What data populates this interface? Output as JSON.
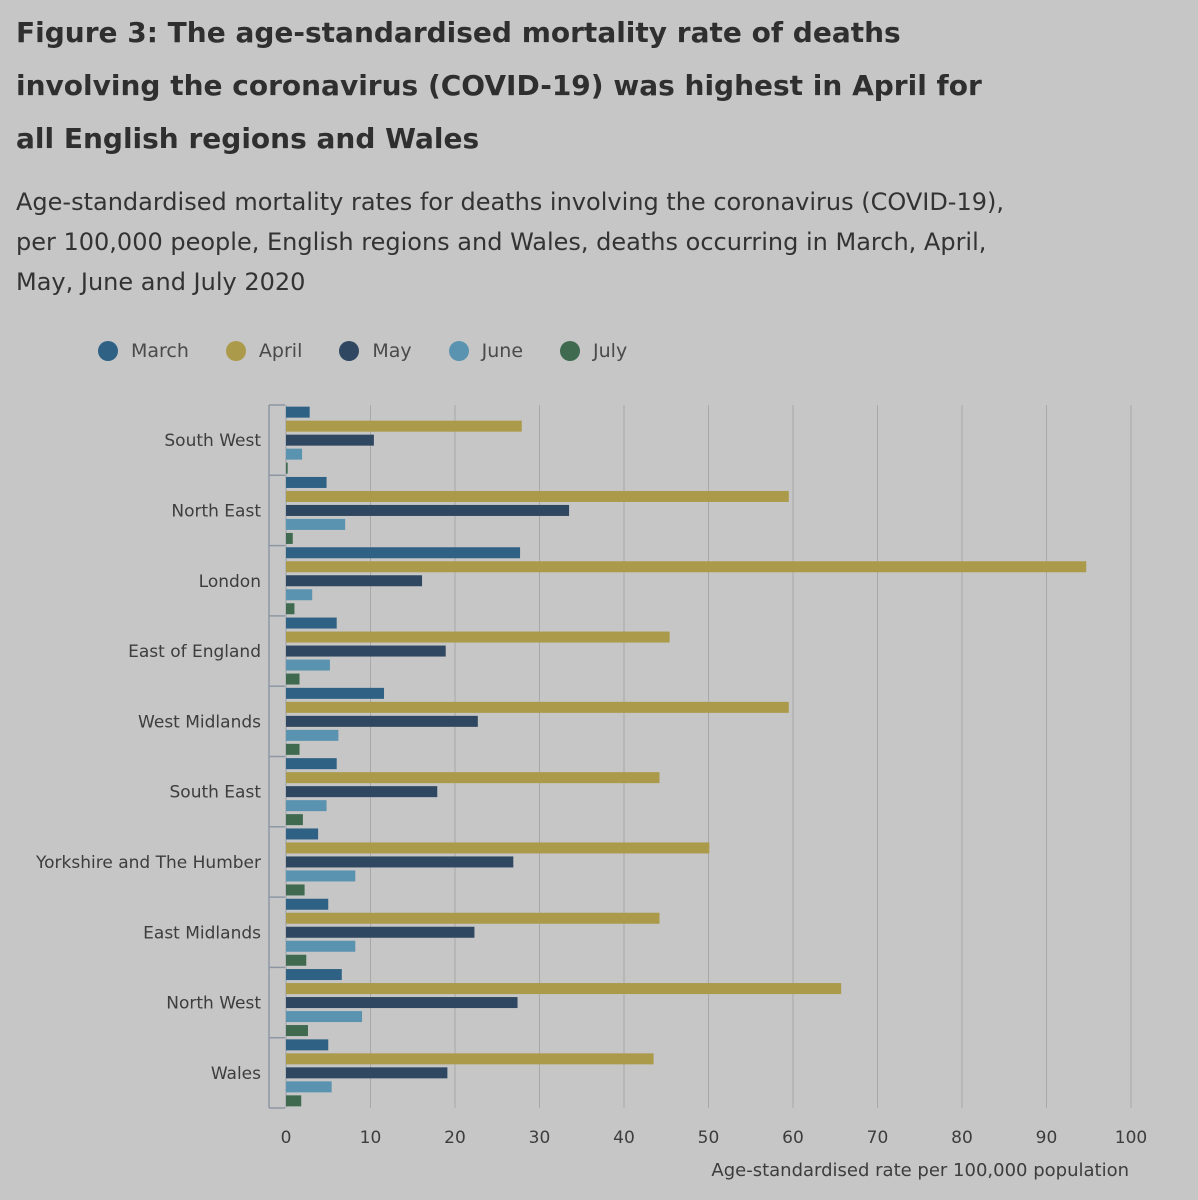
{
  "title": "Figure 3: The age-standardised mortality rate of deaths involving the coronavirus (COVID-19) was highest in April for all English regions and Wales",
  "subtitle": "Age-standardised mortality rates for deaths involving the coronavirus (COVID-19), per 100,000 people, English regions and Wales, deaths occurring in March, April, May, June and July 2020",
  "legend": [
    {
      "label": "March",
      "color": "#2e6183"
    },
    {
      "label": "April",
      "color": "#ab9a4a"
    },
    {
      "label": "May",
      "color": "#2f4760"
    },
    {
      "label": "June",
      "color": "#5a93b0"
    },
    {
      "label": "July",
      "color": "#3f6a50"
    }
  ],
  "chart_data": {
    "type": "bar",
    "orientation": "horizontal",
    "categories": [
      "South West",
      "North East",
      "London",
      "East of England",
      "West Midlands",
      "South East",
      "Yorkshire and The Humber",
      "East Midlands",
      "North West",
      "Wales"
    ],
    "series": [
      {
        "name": "March",
        "color": "#2e6183",
        "values": [
          2.8,
          4.8,
          27.7,
          6.0,
          11.6,
          6.0,
          3.8,
          5.0,
          6.6,
          5.0
        ]
      },
      {
        "name": "April",
        "color": "#ab9a4a",
        "values": [
          27.9,
          59.5,
          94.7,
          45.4,
          59.5,
          44.2,
          50.1,
          44.2,
          65.7,
          43.5
        ]
      },
      {
        "name": "May",
        "color": "#2f4760",
        "values": [
          10.4,
          33.5,
          16.1,
          18.9,
          22.7,
          17.9,
          26.9,
          22.3,
          27.4,
          19.1
        ]
      },
      {
        "name": "June",
        "color": "#5a93b0",
        "values": [
          1.9,
          7.0,
          3.1,
          5.2,
          6.2,
          4.8,
          8.2,
          8.2,
          9.0,
          5.4
        ]
      },
      {
        "name": "July",
        "color": "#3f6a50",
        "values": [
          0.2,
          0.8,
          1.0,
          1.6,
          1.6,
          2.0,
          2.2,
          2.4,
          2.6,
          1.8
        ]
      }
    ],
    "xticks": [
      0,
      10,
      20,
      30,
      40,
      50,
      60,
      70,
      80,
      90,
      100
    ],
    "xlim": [
      0,
      100
    ],
    "xlabel": "Age-standardised rate per 100,000 population",
    "ylabel": "",
    "grid": true,
    "legend_position": "top"
  }
}
